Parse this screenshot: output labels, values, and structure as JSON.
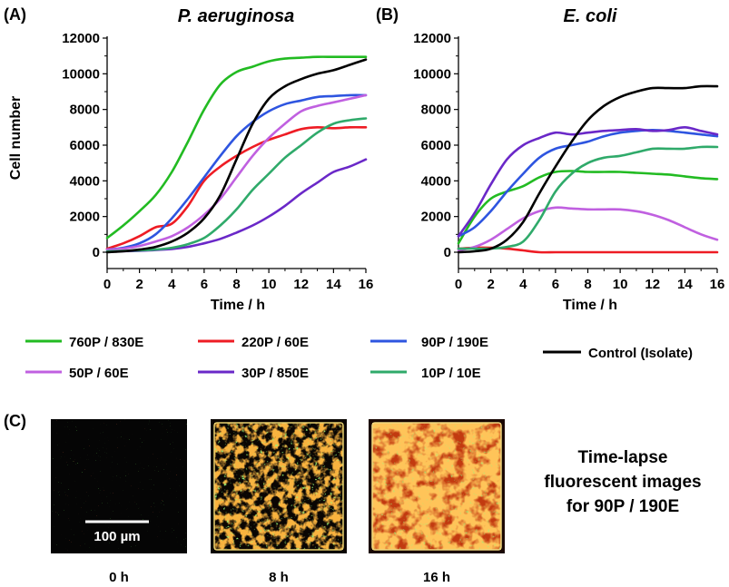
{
  "panel_labels": {
    "a": "(A)",
    "b": "(B)",
    "c": "(C)"
  },
  "legend": {
    "items": [
      {
        "label": "760P / 830E",
        "color": "#22bb22"
      },
      {
        "label": "220P / 60E",
        "color": "#ee1c24"
      },
      {
        "label": "90P / 190E",
        "color": "#2e55e0"
      },
      {
        "label": "50P / 60E",
        "color": "#c060e0"
      },
      {
        "label": "30P / 850E",
        "color": "#6a28c8"
      },
      {
        "label": "10P / 10E",
        "color": "#2faa6a"
      },
      {
        "label": "Control (Isolate)",
        "color": "#000000"
      }
    ]
  },
  "images": {
    "scale_bar_label": "100 µm",
    "captions": [
      "0 h",
      "8 h",
      "16 h"
    ],
    "description_lines": [
      "Time-lapse",
      "fluorescent images",
      "for 90P / 190E"
    ]
  },
  "chart_data": [
    {
      "type": "line",
      "title": "P. aeruginosa",
      "xlabel": "Time / h",
      "ylabel": "Cell number",
      "xlim": [
        0,
        16
      ],
      "ylim": [
        0,
        12000
      ],
      "xticks": [
        0,
        2,
        4,
        6,
        8,
        10,
        12,
        14,
        16
      ],
      "yticks": [
        0,
        2000,
        4000,
        6000,
        8000,
        10000,
        12000
      ],
      "x": [
        0,
        1,
        2,
        3,
        4,
        5,
        6,
        7,
        8,
        9,
        10,
        11,
        12,
        13,
        14,
        15,
        16
      ],
      "series": [
        {
          "name": "760P / 830E",
          "color": "#22bb22",
          "values": [
            800,
            1500,
            2300,
            3200,
            4500,
            6200,
            8000,
            9400,
            10100,
            10400,
            10700,
            10850,
            10900,
            10950,
            10950,
            10950,
            10950
          ]
        },
        {
          "name": "220P / 60E",
          "color": "#ee1c24",
          "values": [
            200,
            500,
            900,
            1400,
            1600,
            2600,
            4000,
            4800,
            5400,
            5900,
            6300,
            6600,
            6900,
            7000,
            6950,
            7000,
            7000
          ]
        },
        {
          "name": "90P / 190E",
          "color": "#2e55e0",
          "values": [
            150,
            250,
            500,
            1000,
            1900,
            3000,
            4200,
            5400,
            6500,
            7300,
            7900,
            8300,
            8500,
            8700,
            8750,
            8800,
            8800
          ]
        },
        {
          "name": "50P / 60E",
          "color": "#c060e0",
          "values": [
            150,
            200,
            350,
            600,
            900,
            1400,
            2100,
            3000,
            4200,
            5400,
            6400,
            7200,
            7900,
            8200,
            8400,
            8600,
            8800
          ]
        },
        {
          "name": "30P / 850E",
          "color": "#6a28c8",
          "values": [
            50,
            60,
            80,
            120,
            180,
            300,
            500,
            750,
            1100,
            1500,
            2000,
            2600,
            3300,
            3900,
            4500,
            4800,
            5200
          ]
        },
        {
          "name": "10P / 10E",
          "color": "#2faa6a",
          "values": [
            50,
            70,
            100,
            150,
            250,
            450,
            800,
            1500,
            2400,
            3500,
            4400,
            5300,
            6000,
            6700,
            7200,
            7400,
            7500
          ]
        },
        {
          "name": "Control (Isolate)",
          "color": "#000000",
          "values": [
            0,
            50,
            150,
            300,
            600,
            1100,
            1900,
            3200,
            5200,
            7200,
            8600,
            9300,
            9700,
            10000,
            10200,
            10500,
            10800
          ]
        }
      ]
    },
    {
      "type": "line",
      "title": "E. coli",
      "xlabel": "Time / h",
      "ylabel": "",
      "xlim": [
        0,
        16
      ],
      "ylim": [
        0,
        12000
      ],
      "xticks": [
        0,
        2,
        4,
        6,
        8,
        10,
        12,
        14,
        16
      ],
      "yticks": [
        0,
        2000,
        4000,
        6000,
        8000,
        10000,
        12000
      ],
      "x": [
        0,
        1,
        2,
        3,
        4,
        5,
        6,
        7,
        8,
        9,
        10,
        11,
        12,
        13,
        14,
        15,
        16
      ],
      "series": [
        {
          "name": "760P / 830E",
          "color": "#22bb22",
          "values": [
            500,
            2000,
            3000,
            3400,
            3700,
            4200,
            4500,
            4550,
            4500,
            4500,
            4500,
            4450,
            4400,
            4350,
            4250,
            4150,
            4100
          ]
        },
        {
          "name": "220P / 60E",
          "color": "#ee1c24",
          "values": [
            200,
            250,
            250,
            200,
            100,
            0,
            0,
            0,
            0,
            0,
            0,
            0,
            0,
            0,
            0,
            0,
            0
          ]
        },
        {
          "name": "90P / 190E",
          "color": "#2e55e0",
          "values": [
            900,
            1400,
            2300,
            3400,
            4400,
            5300,
            5800,
            6000,
            6200,
            6500,
            6700,
            6800,
            6850,
            6800,
            6700,
            6600,
            6500
          ]
        },
        {
          "name": "50P / 60E",
          "color": "#c060e0",
          "values": [
            100,
            300,
            700,
            1300,
            1900,
            2300,
            2500,
            2450,
            2400,
            2400,
            2400,
            2300,
            2100,
            1800,
            1400,
            1000,
            700
          ]
        },
        {
          "name": "30P / 850E",
          "color": "#6a28c8",
          "values": [
            900,
            2200,
            3800,
            5200,
            6000,
            6400,
            6700,
            6600,
            6700,
            6800,
            6850,
            6900,
            6800,
            6850,
            7000,
            6800,
            6600
          ]
        },
        {
          "name": "10P / 10E",
          "color": "#2faa6a",
          "values": [
            200,
            200,
            200,
            300,
            600,
            1800,
            3400,
            4400,
            5000,
            5300,
            5400,
            5600,
            5800,
            5800,
            5800,
            5900,
            5900
          ]
        },
        {
          "name": "Control (Isolate)",
          "color": "#000000",
          "values": [
            0,
            50,
            200,
            700,
            1700,
            3300,
            4800,
            6200,
            7400,
            8200,
            8700,
            9000,
            9200,
            9200,
            9200,
            9300,
            9300
          ]
        }
      ]
    }
  ]
}
